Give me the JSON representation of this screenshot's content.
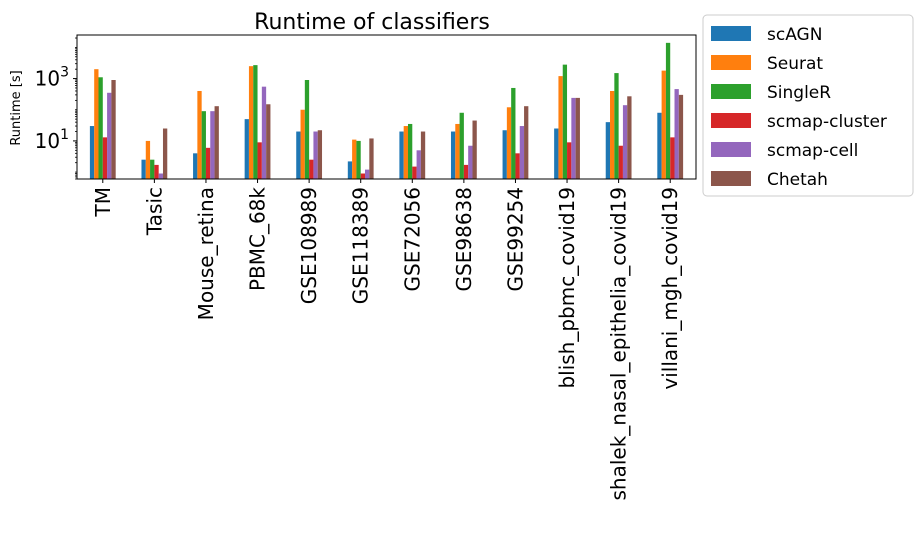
{
  "chart_data": {
    "type": "bar",
    "title": "Runtime of classifiers",
    "xlabel": "",
    "ylabel": "Runtime  [s]",
    "yscale": "log",
    "ylim": [
      0.6,
      25000
    ],
    "yticks": [
      {
        "value": 10,
        "base": "10",
        "exp": "1"
      },
      {
        "value": 1000,
        "base": "10",
        "exp": "3"
      }
    ],
    "legend_position": "outside-top-right",
    "categories": [
      "TM",
      "Tasic",
      "Mouse_retina",
      "PBMC_68k",
      "GSE108989",
      "GSE118389",
      "GSE72056",
      "GSE98638",
      "GSE99254",
      "blish_pbmc_covid19",
      "shalek_nasal_epithelia_covid19",
      "villani_mgh_covid19"
    ],
    "series": [
      {
        "name": "scAGN",
        "color": "#1f77b4",
        "values": [
          30,
          2.5,
          4,
          50,
          20,
          2.2,
          20,
          20,
          22,
          25,
          40,
          80
        ]
      },
      {
        "name": "Seurat",
        "color": "#ff7f0e",
        "values": [
          2000,
          10,
          400,
          2500,
          100,
          11,
          30,
          35,
          120,
          1200,
          400,
          1800
        ]
      },
      {
        "name": "SingleR",
        "color": "#2ca02c",
        "values": [
          1100,
          2.5,
          90,
          2700,
          900,
          10,
          35,
          80,
          500,
          2800,
          1500,
          14000
        ]
      },
      {
        "name": "scmap-cluster",
        "color": "#d62728",
        "values": [
          13,
          1.7,
          6,
          9,
          2.5,
          0.9,
          1.5,
          1.7,
          4,
          9,
          7,
          13
        ]
      },
      {
        "name": "scmap-cell",
        "color": "#9467bd",
        "values": [
          350,
          0.9,
          90,
          550,
          20,
          1.2,
          5,
          7,
          30,
          240,
          140,
          460
        ]
      },
      {
        "name": "Chetah",
        "color": "#8c564b",
        "values": [
          900,
          25,
          130,
          150,
          22,
          12,
          20,
          45,
          130,
          240,
          270,
          300
        ]
      }
    ]
  }
}
